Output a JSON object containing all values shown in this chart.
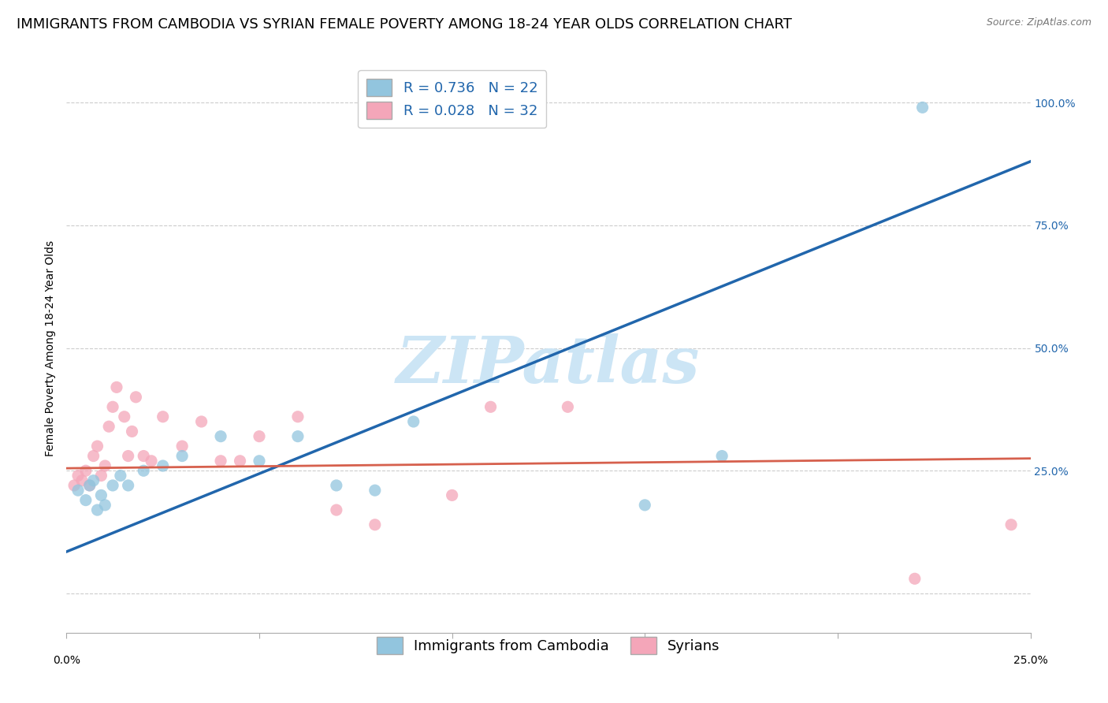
{
  "title": "IMMIGRANTS FROM CAMBODIA VS SYRIAN FEMALE POVERTY AMONG 18-24 YEAR OLDS CORRELATION CHART",
  "source": "Source: ZipAtlas.com",
  "ylabel": "Female Poverty Among 18-24 Year Olds",
  "xlim": [
    0.0,
    0.25
  ],
  "ylim": [
    -0.08,
    1.08
  ],
  "watermark": "ZIPatlas",
  "legend_R_blue": "0.736",
  "legend_N_blue": "22",
  "legend_R_pink": "0.028",
  "legend_N_pink": "32",
  "blue_scatter_x": [
    0.003,
    0.005,
    0.006,
    0.007,
    0.008,
    0.009,
    0.01,
    0.012,
    0.014,
    0.016,
    0.02,
    0.025,
    0.03,
    0.04,
    0.05,
    0.06,
    0.07,
    0.08,
    0.09,
    0.15,
    0.17,
    0.222
  ],
  "blue_scatter_y": [
    0.21,
    0.19,
    0.22,
    0.23,
    0.17,
    0.2,
    0.18,
    0.22,
    0.24,
    0.22,
    0.25,
    0.26,
    0.28,
    0.32,
    0.27,
    0.32,
    0.22,
    0.21,
    0.35,
    0.18,
    0.28,
    0.99
  ],
  "pink_scatter_x": [
    0.002,
    0.003,
    0.004,
    0.005,
    0.006,
    0.007,
    0.008,
    0.009,
    0.01,
    0.011,
    0.012,
    0.013,
    0.015,
    0.016,
    0.017,
    0.018,
    0.02,
    0.022,
    0.025,
    0.03,
    0.035,
    0.04,
    0.045,
    0.05,
    0.06,
    0.07,
    0.08,
    0.1,
    0.11,
    0.13,
    0.22,
    0.245
  ],
  "pink_scatter_y": [
    0.22,
    0.24,
    0.23,
    0.25,
    0.22,
    0.28,
    0.3,
    0.24,
    0.26,
    0.34,
    0.38,
    0.42,
    0.36,
    0.28,
    0.33,
    0.4,
    0.28,
    0.27,
    0.36,
    0.3,
    0.35,
    0.27,
    0.27,
    0.32,
    0.36,
    0.17,
    0.14,
    0.2,
    0.38,
    0.38,
    0.03,
    0.14
  ],
  "blue_line_x": [
    0.0,
    0.25
  ],
  "blue_line_y": [
    0.085,
    0.88
  ],
  "pink_line_x": [
    0.0,
    0.25
  ],
  "pink_line_y": [
    0.255,
    0.275
  ],
  "blue_color": "#92c5de",
  "pink_color": "#f4a6b9",
  "blue_line_color": "#2166ac",
  "pink_line_color": "#d6604d",
  "grid_color": "#cccccc",
  "background_color": "#ffffff",
  "title_fontsize": 13,
  "axis_label_fontsize": 10,
  "tick_fontsize": 10,
  "legend_fontsize": 13,
  "watermark_fontsize": 60,
  "watermark_color": "#cce5f5",
  "scatter_size": 120,
  "bottom_legend_label_blue": "Immigrants from Cambodia",
  "bottom_legend_label_pink": "Syrians"
}
